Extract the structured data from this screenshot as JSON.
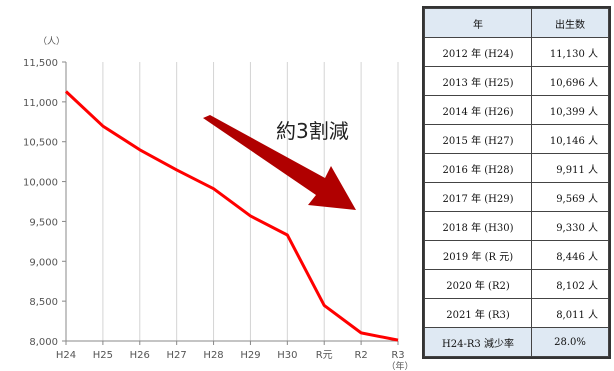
{
  "chart_data": {
    "type": "line",
    "unit_label": "（人）",
    "x_unit_label": "（年）",
    "categories": [
      "H24",
      "H25",
      "H26",
      "H27",
      "H28",
      "H29",
      "H30",
      "R元",
      "R2",
      "R3"
    ],
    "series": [
      {
        "values": [
          11130,
          10696,
          10399,
          10146,
          9911,
          9569,
          9330,
          8446,
          8102,
          8011
        ]
      }
    ],
    "ylim": [
      8000,
      11500
    ],
    "yticks": [
      8000,
      8500,
      9000,
      9500,
      10000,
      10500,
      11000,
      11500
    ],
    "ytick_labels": [
      "8,000",
      "8,500",
      "9,000",
      "9,500",
      "10,000",
      "10,500",
      "11,000",
      "11,500"
    ],
    "grid": "vertical",
    "line_color": "#ff0000",
    "arrow_color": "#b00000",
    "annotation": "約3割減"
  },
  "table": {
    "headers": [
      "年",
      "出生数"
    ],
    "rows": [
      [
        "2012 年 (H24)",
        "11,130 人"
      ],
      [
        "2013 年 (H25)",
        "10,696 人"
      ],
      [
        "2014 年 (H26)",
        "10,399 人"
      ],
      [
        "2015 年 (H27)",
        "10,146 人"
      ],
      [
        "2016 年 (H28)",
        "9,911 人"
      ],
      [
        "2017 年 (H29)",
        "9,569 人"
      ],
      [
        "2018 年 (H30)",
        "9,330 人"
      ],
      [
        "2019 年 (R 元)",
        "8,446 人"
      ],
      [
        "2020 年 (R2)",
        "8,102 人"
      ],
      [
        "2021 年 (R3)",
        "8,011 人"
      ]
    ],
    "footer": [
      "H24-R3 減少率",
      "28.0%"
    ],
    "header_bg": "#dfe9f3"
  }
}
